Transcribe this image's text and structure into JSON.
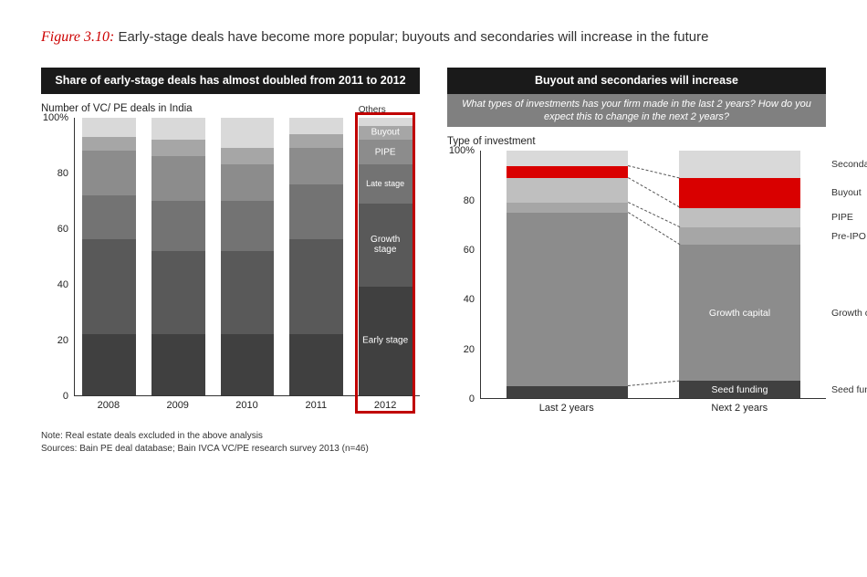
{
  "figure": {
    "number": "Figure 3.10:",
    "caption": "Early-stage deals have become more popular; buyouts and secondaries will increase in the future"
  },
  "left_chart": {
    "type": "stacked-bar",
    "header": "Share of early-stage deals has almost doubled from 2011 to 2012",
    "axis_title": "Number of VC/ PE deals in India",
    "ylim": [
      0,
      100
    ],
    "yticks": [
      0,
      20,
      40,
      60,
      80,
      100
    ],
    "ytick_labels": [
      "0",
      "20",
      "40",
      "60",
      "80",
      "100%"
    ],
    "categories": [
      "2008",
      "2009",
      "2010",
      "2011",
      "2012"
    ],
    "series": [
      {
        "name": "Early stage",
        "color": "#404040"
      },
      {
        "name": "Growth stage",
        "color": "#595959"
      },
      {
        "name": "Late stage",
        "color": "#737373"
      },
      {
        "name": "PIPE",
        "color": "#8c8c8c"
      },
      {
        "name": "Buyout",
        "color": "#a6a6a6"
      },
      {
        "name": "Others",
        "color": "#d9d9d9"
      }
    ],
    "stacks": [
      [
        22,
        34,
        16,
        16,
        5,
        7
      ],
      [
        22,
        30,
        18,
        16,
        6,
        8
      ],
      [
        22,
        30,
        18,
        13,
        6,
        11
      ],
      [
        22,
        34,
        20,
        13,
        5,
        6
      ],
      [
        39,
        30,
        14,
        9,
        5,
        3
      ]
    ],
    "highlight_index": 4,
    "highlight_color": "#c00000",
    "segment_labels_on_index": 4,
    "bar_width_pct": 78,
    "background": "#ffffff"
  },
  "right_chart": {
    "type": "stacked-bar",
    "header": "Buyout and secondaries will increase",
    "subheader": "What types of investments has your firm made in the last 2 years? How do you expect this to change in the next 2 years?",
    "axis_title": "Type of investment",
    "ylim": [
      0,
      100
    ],
    "yticks": [
      0,
      20,
      40,
      60,
      80,
      100
    ],
    "ytick_labels": [
      "0",
      "20",
      "40",
      "60",
      "80",
      "100%"
    ],
    "categories": [
      "Last 2 years",
      "Next 2 years"
    ],
    "series": [
      {
        "name": "Seed funding",
        "color": "#404040"
      },
      {
        "name": "Growth capital",
        "color": "#8c8c8c"
      },
      {
        "name": "Pre-IPO",
        "color": "#a6a6a6"
      },
      {
        "name": "PIPE",
        "color": "#bfbfbf"
      },
      {
        "name": "Buyout",
        "color": "#d90000"
      },
      {
        "name": "Secondaries",
        "color": "#d9d9d9"
      }
    ],
    "stacks": [
      [
        5,
        70,
        4,
        10,
        5,
        6
      ],
      [
        7,
        55,
        7,
        8,
        12,
        11
      ]
    ],
    "side_labels_on_index": 1,
    "connectors": true,
    "bar_width_pct": 70,
    "background": "#ffffff"
  },
  "footnotes": {
    "note": "Note: Real estate deals excluded in the above analysis",
    "sources": "Sources: Bain PE deal database; Bain IVCA VC/PE research survey 2013 (n=46)"
  }
}
